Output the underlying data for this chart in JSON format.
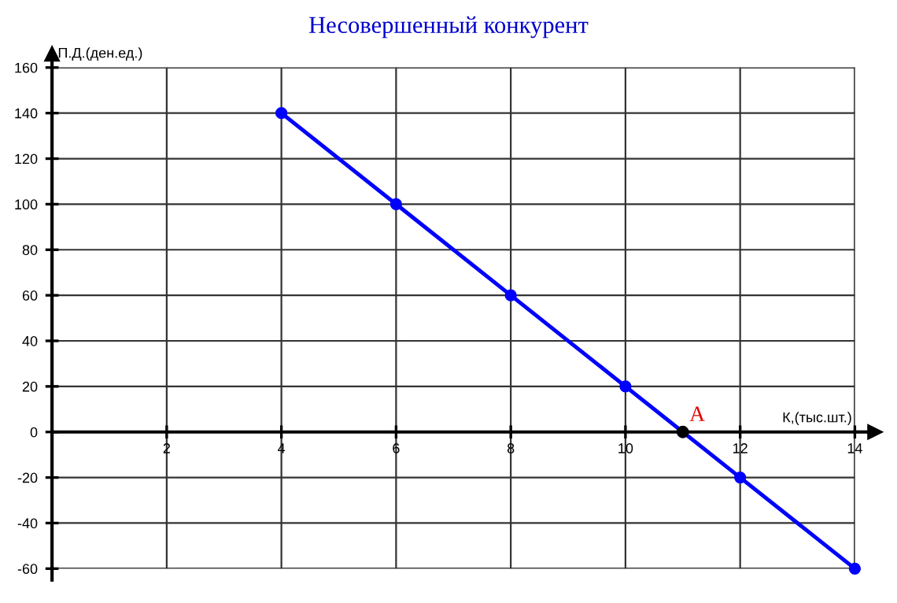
{
  "chart_data": {
    "type": "line",
    "title": "Несовершенный конкурент",
    "xlabel": "К,(тыс.шт.)",
    "ylabel": "П.Д.(ден.ед.)",
    "x": [
      4,
      6,
      8,
      10,
      12,
      14
    ],
    "series": [
      {
        "color": "#0000ff",
        "values": [
          140,
          100,
          60,
          20,
          -20,
          -60
        ],
        "marker": "circle"
      },
      {
        "type": "scatter",
        "color": "#000000",
        "x": [
          11
        ],
        "values": [
          0
        ],
        "marker": "circle"
      }
    ],
    "annotations": [
      {
        "text": "A",
        "x": 11,
        "y": 0
      }
    ],
    "xlim": [
      0,
      14
    ],
    "ylim": [
      -60,
      160
    ],
    "xticks": [
      2,
      4,
      6,
      8,
      10,
      12,
      14
    ],
    "yticks": [
      -60,
      -40,
      -20,
      0,
      20,
      40,
      60,
      80,
      100,
      120,
      140,
      160
    ],
    "grid": true,
    "legend": false,
    "line_style": "solid"
  }
}
